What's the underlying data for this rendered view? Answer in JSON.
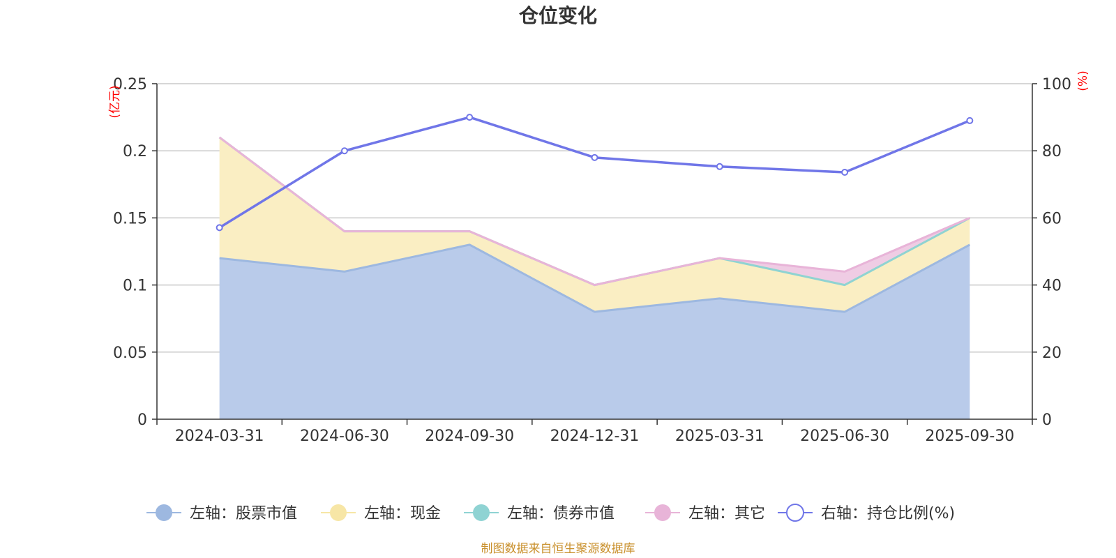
{
  "chart_data": {
    "type": "area",
    "title": "仓位变化",
    "categories": [
      "2024-03-31",
      "2024-06-30",
      "2024-09-30",
      "2024-12-31",
      "2025-03-31",
      "2025-06-30",
      "2025-09-30"
    ],
    "left_axis": {
      "unit": "(亿元)",
      "ylim": [
        0,
        0.25
      ],
      "ticks": [
        "0",
        "0.05",
        "0.1",
        "0.15",
        "0.2",
        "0.25"
      ]
    },
    "right_axis": {
      "unit": "(%)",
      "ylim": [
        0,
        100
      ],
      "ticks": [
        "0",
        "20",
        "40",
        "60",
        "80",
        "100"
      ]
    },
    "stacked": true,
    "series": [
      {
        "name": "左轴：股票市值",
        "type": "area",
        "axis": "left",
        "color": "#9db8e0",
        "fill": "#b9cbea",
        "values": [
          0.12,
          0.11,
          0.13,
          0.08,
          0.09,
          0.08,
          0.13
        ]
      },
      {
        "name": "左轴：现金",
        "type": "area",
        "axis": "left",
        "color": "#f7e6a6",
        "fill": "#faeec3",
        "values": [
          0.09,
          0.03,
          0.01,
          0.02,
          0.03,
          0.02,
          0.02
        ]
      },
      {
        "name": "左轴：债券市值",
        "type": "area",
        "axis": "left",
        "color": "#8fd3d3",
        "fill": "#b8e4e4",
        "values": [
          0,
          0,
          0,
          0,
          0,
          0,
          0
        ]
      },
      {
        "name": "左轴：其它",
        "type": "area",
        "axis": "left",
        "color": "#e8b4d8",
        "fill": "#efcce4",
        "values": [
          0,
          0,
          0,
          0,
          0,
          0.01,
          0
        ]
      },
      {
        "name": "右轴：持仓比例(%)",
        "type": "line",
        "axis": "right",
        "color": "#7076e8",
        "values": [
          57.1,
          80.0,
          90.0,
          78.0,
          75.3,
          73.6,
          89.0
        ]
      }
    ],
    "grid": true,
    "legend_position": "bottom"
  },
  "source": "制图数据来自恒生聚源数据库"
}
